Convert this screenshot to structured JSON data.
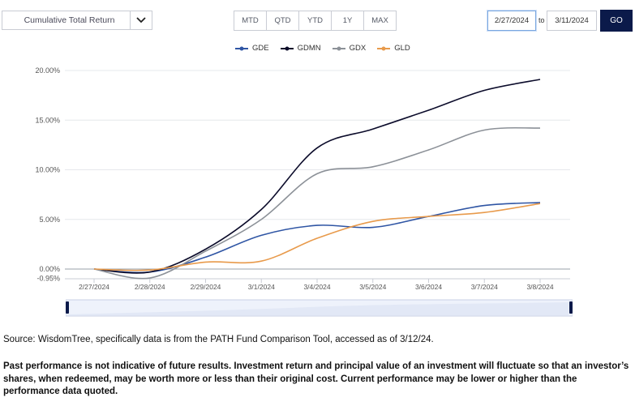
{
  "metric_select": {
    "value": "Cumulative Total Return",
    "icon": "chevron-down-icon"
  },
  "periods": [
    "MTD",
    "QTD",
    "YTD",
    "1Y",
    "MAX"
  ],
  "date_range": {
    "from": "2/27/2024",
    "to_label": "to",
    "to": "3/11/2024",
    "go_label": "GO"
  },
  "chart_data": {
    "type": "line",
    "x": [
      "2/27/2024",
      "2/28/2024",
      "2/29/2024",
      "3/1/2024",
      "3/4/2024",
      "3/5/2024",
      "3/6/2024",
      "3/7/2024",
      "3/8/2024"
    ],
    "y_ticks": [
      "20.00%",
      "15.00%",
      "10.00%",
      "5.00%",
      "0.00%",
      "-0.95%"
    ],
    "ylim": [
      -0.95,
      20
    ],
    "grid": true,
    "legend_position": "top",
    "series": [
      {
        "name": "GDE",
        "color": "#2f55a4",
        "values": [
          0,
          -0.3,
          1.2,
          3.4,
          4.4,
          4.2,
          5.3,
          6.4,
          6.7
        ]
      },
      {
        "name": "GDMN",
        "color": "#0b0b2a",
        "values": [
          0,
          -0.3,
          2.0,
          6.0,
          12.2,
          14.1,
          16.0,
          18.0,
          19.1
        ]
      },
      {
        "name": "GDX",
        "color": "#8c9198",
        "values": [
          0,
          -0.9,
          1.8,
          5.0,
          9.6,
          10.3,
          12.0,
          14.0,
          14.2
        ]
      },
      {
        "name": "GLD",
        "color": "#e89a4b",
        "values": [
          0,
          -0.1,
          0.7,
          0.8,
          3.1,
          4.8,
          5.3,
          5.7,
          6.6
        ]
      }
    ]
  },
  "footer": {
    "source": "Source: WisdomTree, specifically data is from the PATH Fund Comparison Tool, accessed as of 3/12/24.",
    "disclaimer": "Past performance is not indicative of future results. Investment return and principal value of an investment will fluctuate so that an investor’s shares, when redeemed, may be worth more or less than their original cost. Current performance may be lower or higher than the performance data quoted."
  }
}
